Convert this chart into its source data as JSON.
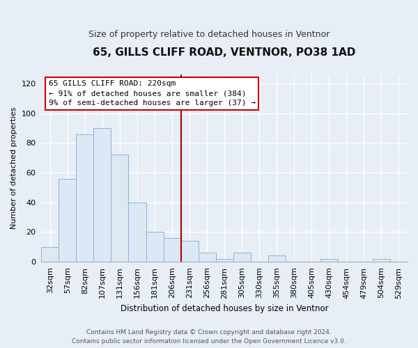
{
  "title": "65, GILLS CLIFF ROAD, VENTNOR, PO38 1AD",
  "subtitle": "Size of property relative to detached houses in Ventnor",
  "xlabel": "Distribution of detached houses by size in Ventnor",
  "ylabel": "Number of detached properties",
  "bar_color": "#dde8f5",
  "bar_edge_color": "#8ab4d8",
  "background_color": "#e8eef5",
  "plot_bg_color": "#e8eef5",
  "grid_color": "#ffffff",
  "categories": [
    "32sqm",
    "57sqm",
    "82sqm",
    "107sqm",
    "131sqm",
    "156sqm",
    "181sqm",
    "206sqm",
    "231sqm",
    "256sqm",
    "281sqm",
    "305sqm",
    "330sqm",
    "355sqm",
    "380sqm",
    "405sqm",
    "430sqm",
    "454sqm",
    "479sqm",
    "504sqm",
    "529sqm"
  ],
  "values": [
    10,
    56,
    86,
    90,
    72,
    40,
    20,
    16,
    14,
    6,
    2,
    6,
    0,
    4,
    0,
    0,
    2,
    0,
    0,
    2,
    0
  ],
  "vline_color": "#aa0000",
  "vline_index": 8.0,
  "ylim": [
    0,
    126
  ],
  "yticks": [
    0,
    20,
    40,
    60,
    80,
    100,
    120
  ],
  "annotation_title": "65 GILLS CLIFF ROAD: 220sqm",
  "annotation_line1": "← 91% of detached houses are smaller (384)",
  "annotation_line2": "9% of semi-detached houses are larger (37) →",
  "annotation_box_facecolor": "#ffffff",
  "annotation_box_edgecolor": "#cc0000",
  "footer_line1": "Contains HM Land Registry data © Crown copyright and database right 2024.",
  "footer_line2": "Contains public sector information licensed under the Open Government Licence v3.0.",
  "title_fontsize": 11,
  "subtitle_fontsize": 9,
  "tick_fontsize": 8,
  "ylabel_fontsize": 8,
  "xlabel_fontsize": 8.5,
  "footer_fontsize": 6.5,
  "annot_fontsize": 8
}
